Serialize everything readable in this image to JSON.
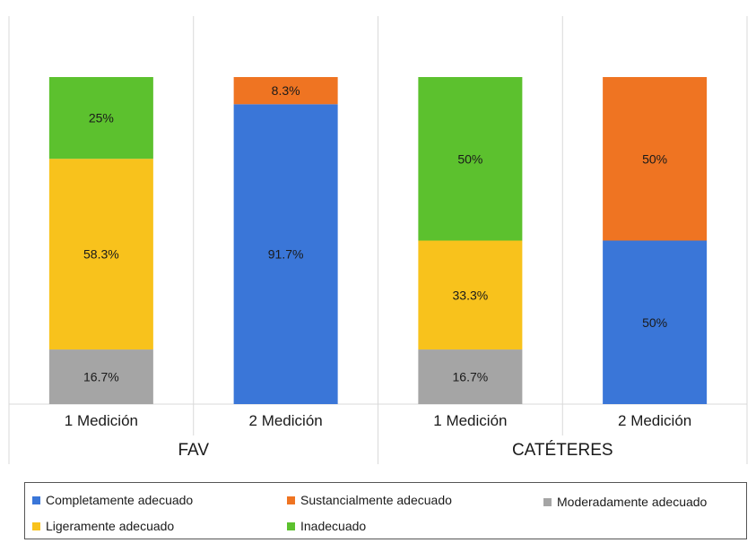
{
  "chart_data": {
    "type": "bar",
    "stacked": true,
    "normalized": true,
    "groups": [
      {
        "label": "FAV",
        "categories": [
          "1 Medición",
          "2 Medición"
        ]
      },
      {
        "label": "CATÉTERES",
        "categories": [
          "1 Medición",
          "2 Medición"
        ]
      }
    ],
    "categories": [
      "1 Medición",
      "2 Medición",
      "1 Medición",
      "2 Medición"
    ],
    "series": [
      {
        "name": "Completamente adecuado",
        "color": "#3a76d8",
        "values": [
          0,
          91.7,
          0,
          50
        ],
        "labels": [
          "",
          "91.7%",
          "",
          "50%"
        ]
      },
      {
        "name": "Sustancialmente adecuado",
        "color": "#ef7422",
        "values": [
          0,
          8.3,
          0,
          50
        ],
        "labels": [
          "",
          "8.3%",
          "",
          "50%"
        ]
      },
      {
        "name": "Moderadamente adecuado",
        "color": "#a5a5a5",
        "values": [
          16.7,
          0,
          16.7,
          0
        ],
        "labels": [
          "16.7%",
          "",
          "16.7%",
          ""
        ]
      },
      {
        "name": "Ligeramente adecuado",
        "color": "#f8c21c",
        "values": [
          58.3,
          0,
          33.3,
          0
        ],
        "labels": [
          "58.3%",
          "",
          "33.3%",
          ""
        ]
      },
      {
        "name": "Inadecuado",
        "color": "#5cc12e",
        "values": [
          25,
          0,
          50,
          0
        ],
        "labels": [
          "25%",
          "",
          "50%",
          ""
        ]
      }
    ],
    "stack_order": [
      "Moderadamente adecuado",
      "Ligeramente adecuado",
      "Completamente adecuado",
      "Sustancialmente adecuado",
      "Inadecuado"
    ],
    "ylim": [
      0,
      100
    ],
    "legend_position": "bottom"
  },
  "legend": {
    "items": [
      {
        "name": "Completamente adecuado",
        "color": "#3a76d8"
      },
      {
        "name": "Sustancialmente adecuado",
        "color": "#ef7422"
      },
      {
        "name": "Moderadamente adecuado",
        "color": "#a5a5a5"
      },
      {
        "name": "Ligeramente adecuado",
        "color": "#f8c21c"
      },
      {
        "name": "Inadecuado",
        "color": "#5cc12e"
      }
    ]
  }
}
